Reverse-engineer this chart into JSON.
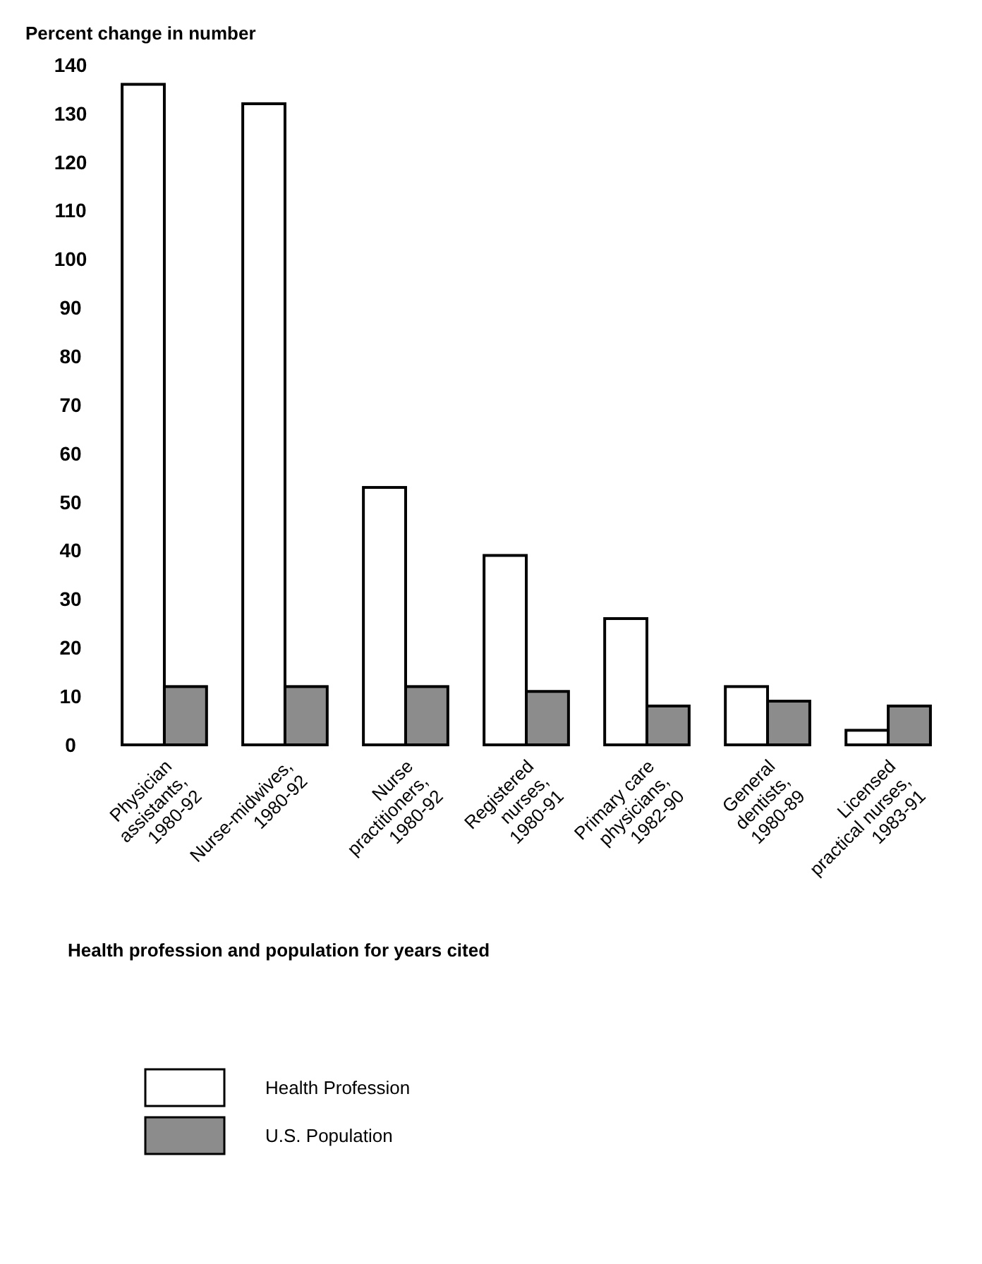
{
  "chart_data": {
    "type": "bar",
    "ylabel": "Percent change in number",
    "xlabel": "Health profession and population for years cited",
    "categories": [
      "Physician assistants, 1980-92",
      "Nurse-midwives, 1980-92",
      "Nurse practitioners, 1980-92",
      "Registered nurses, 1980-91",
      "Primary care physicians, 1982-90",
      "General dentists, 1980-89",
      "Licensed practical nurses, 1983-91"
    ],
    "series": [
      {
        "name": "Health Profession",
        "color": "#ffffff",
        "values": [
          136,
          132,
          53,
          39,
          26,
          12,
          3
        ]
      },
      {
        "name": "U.S. Population",
        "color": "#8c8c8c",
        "values": [
          12,
          12,
          12,
          11,
          8,
          9,
          8
        ]
      }
    ],
    "ylim": [
      0,
      140
    ],
    "yticks": [
      0,
      10,
      20,
      30,
      40,
      50,
      60,
      70,
      80,
      90,
      100,
      110,
      120,
      130,
      140
    ],
    "grid": false,
    "legend": "bottom"
  }
}
